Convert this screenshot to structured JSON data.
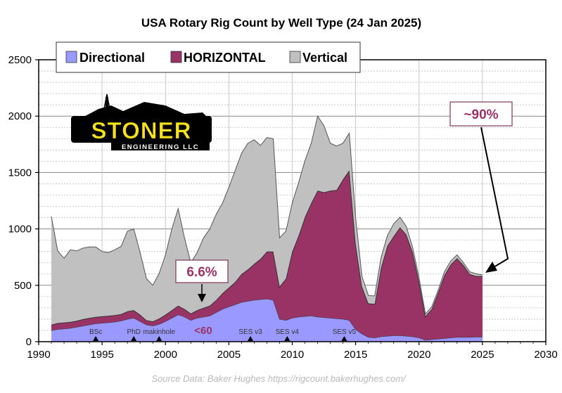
{
  "chart_data": {
    "type": "area",
    "title": "USA Rotary Rig Count by Well Type (24 Jan 2025)",
    "xlabel": "",
    "ylabel": "",
    "xlim": [
      1990,
      2030
    ],
    "ylim": [
      0,
      2500
    ],
    "x_ticks": [
      1990,
      1995,
      2000,
      2005,
      2010,
      2015,
      2020,
      2025,
      2030
    ],
    "y_ticks": [
      0,
      500,
      1000,
      1500,
      2000,
      2500
    ],
    "grid": true,
    "legend_position": "top-left",
    "stacked": true,
    "x": [
      1991.0,
      1991.5,
      1992.0,
      1992.5,
      1993.0,
      1993.5,
      1994.0,
      1994.5,
      1995.0,
      1995.5,
      1996.0,
      1996.5,
      1997.0,
      1997.5,
      1998.0,
      1998.5,
      1999.0,
      1999.5,
      2000.0,
      2000.5,
      2001.0,
      2001.5,
      2002.0,
      2002.5,
      2003.0,
      2003.5,
      2004.0,
      2004.5,
      2005.0,
      2005.5,
      2006.0,
      2006.5,
      2007.0,
      2007.5,
      2008.0,
      2008.5,
      2009.0,
      2009.5,
      2010.0,
      2010.5,
      2011.0,
      2011.5,
      2012.0,
      2012.5,
      2013.0,
      2013.5,
      2014.0,
      2014.5,
      2015.0,
      2015.5,
      2016.0,
      2016.5,
      2017.0,
      2017.5,
      2018.0,
      2018.5,
      2019.0,
      2019.5,
      2020.0,
      2020.5,
      2021.0,
      2021.5,
      2022.0,
      2022.5,
      2023.0,
      2023.5,
      2024.0,
      2024.5,
      2025.0
    ],
    "series": [
      {
        "name": "Directional",
        "color": "#9999ff",
        "values": [
          100,
          110,
          115,
          120,
          130,
          140,
          150,
          160,
          165,
          170,
          175,
          185,
          200,
          210,
          180,
          150,
          140,
          155,
          180,
          210,
          240,
          220,
          190,
          210,
          220,
          230,
          260,
          290,
          310,
          330,
          350,
          360,
          370,
          375,
          380,
          370,
          200,
          190,
          210,
          220,
          225,
          230,
          220,
          215,
          210,
          205,
          200,
          190,
          110,
          70,
          40,
          35,
          45,
          50,
          55,
          55,
          50,
          45,
          35,
          15,
          20,
          25,
          30,
          35,
          40,
          40,
          40,
          42,
          42
        ]
      },
      {
        "name": "HORIZONTAL",
        "color": "#993366",
        "values": [
          50,
          55,
          55,
          55,
          55,
          60,
          60,
          60,
          60,
          60,
          60,
          60,
          70,
          70,
          60,
          40,
          40,
          50,
          60,
          70,
          80,
          70,
          60,
          70,
          80,
          90,
          110,
          140,
          170,
          200,
          250,
          280,
          320,
          360,
          420,
          430,
          290,
          370,
          590,
          720,
          880,
          1000,
          1120,
          1110,
          1130,
          1140,
          1240,
          1330,
          760,
          420,
          300,
          300,
          610,
          800,
          880,
          960,
          900,
          750,
          500,
          210,
          270,
          410,
          560,
          650,
          700,
          640,
          560,
          540,
          540
        ]
      },
      {
        "name": "Vertical",
        "color": "#c0c0c0",
        "values": [
          960,
          640,
          570,
          640,
          620,
          630,
          630,
          620,
          575,
          560,
          580,
          600,
          710,
          720,
          550,
          370,
          320,
          400,
          530,
          720,
          860,
          630,
          450,
          510,
          620,
          680,
          760,
          800,
          890,
          990,
          1070,
          1120,
          1100,
          1005,
          1010,
          1000,
          430,
          420,
          430,
          470,
          500,
          530,
          660,
          590,
          420,
          390,
          320,
          330,
          230,
          90,
          70,
          70,
          90,
          90,
          110,
          90,
          70,
          40,
          30,
          20,
          20,
          20,
          30,
          30,
          30,
          20,
          20,
          20,
          10
        ]
      }
    ],
    "markers": [
      {
        "label": "BSc",
        "x": 1994.5
      },
      {
        "label": "PhD",
        "x": 1997.5
      },
      {
        "label": "makinhole",
        "x": 1999.5
      },
      {
        "label": "SES v3",
        "x": 2006.7
      },
      {
        "label": "SES v4",
        "x": 2009.6
      },
      {
        "label": "SES v5",
        "x": 2014.1
      }
    ],
    "annotations": [
      {
        "text": "6.6%",
        "x": 2003
      },
      {
        "text": "<60",
        "x": 2003
      },
      {
        "text": "~90%",
        "x": 2025
      }
    ],
    "source": "Source Data: Baker Hughes https://rigcount.bakerhughes.com/"
  },
  "logo": {
    "name": "STONER",
    "tagline": "ENGINEERING LLC"
  }
}
